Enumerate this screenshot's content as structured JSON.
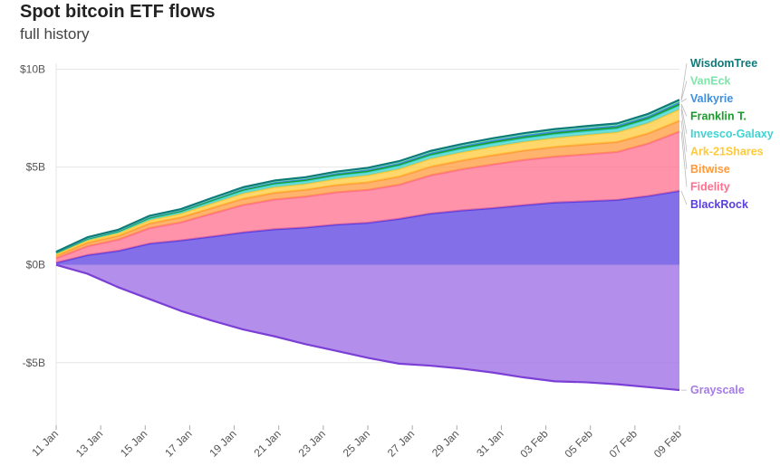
{
  "header": {
    "title": "Spot bitcoin ETF flows",
    "subtitle": "full history"
  },
  "chart_data": {
    "type": "area",
    "title": "Spot bitcoin ETF flows",
    "subtitle": "full history",
    "stacked": true,
    "y_unit": "$B",
    "ylim": [
      -8.2,
      10.3
    ],
    "yticks": [
      {
        "value": 10,
        "label": "$10B"
      },
      {
        "value": 5,
        "label": "$5B"
      },
      {
        "value": 0,
        "label": "$0B"
      },
      {
        "value": -5,
        "label": "-$5B"
      }
    ],
    "x_labels": [
      "11 Jan",
      "13 Jan",
      "15 Jan",
      "17 Jan",
      "19 Jan",
      "21 Jan",
      "23 Jan",
      "25 Jan",
      "27 Jan",
      "29 Jan",
      "31 Jan",
      "03 Feb",
      "05 Feb",
      "07 Feb",
      "09 Feb"
    ],
    "x": [
      "11 Jan",
      "12 Jan",
      "16 Jan",
      "17 Jan",
      "18 Jan",
      "19 Jan",
      "22 Jan",
      "23 Jan",
      "24 Jan",
      "25 Jan",
      "26 Jan",
      "29 Jan",
      "30 Jan",
      "31 Jan",
      "01 Feb",
      "02 Feb",
      "05 Feb",
      "06 Feb",
      "07 Feb",
      "08 Feb",
      "09 Feb"
    ],
    "grid": true,
    "legend": "right",
    "series": [
      {
        "name": "BlackRock",
        "color": "#5a3fe0",
        "values": [
          0.11,
          0.5,
          0.72,
          1.09,
          1.25,
          1.45,
          1.66,
          1.82,
          1.91,
          2.06,
          2.15,
          2.35,
          2.62,
          2.78,
          2.9,
          3.05,
          3.19,
          3.25,
          3.32,
          3.52,
          3.78
        ]
      },
      {
        "name": "Fidelity",
        "color": "#ff6f8e",
        "values": [
          0.23,
          0.45,
          0.57,
          0.79,
          0.92,
          1.17,
          1.4,
          1.52,
          1.58,
          1.65,
          1.68,
          1.74,
          1.95,
          2.1,
          2.23,
          2.31,
          2.34,
          2.4,
          2.45,
          2.68,
          3.03
        ]
      },
      {
        "name": "Bitwise",
        "color": "#ff9a3c",
        "values": [
          0.13,
          0.18,
          0.2,
          0.24,
          0.26,
          0.29,
          0.32,
          0.34,
          0.35,
          0.37,
          0.39,
          0.42,
          0.44,
          0.45,
          0.47,
          0.48,
          0.5,
          0.51,
          0.51,
          0.52,
          0.56
        ]
      },
      {
        "name": "Ark-21Shares",
        "color": "#ffc938",
        "values": [
          0.1,
          0.12,
          0.14,
          0.17,
          0.19,
          0.23,
          0.27,
          0.29,
          0.3,
          0.32,
          0.36,
          0.39,
          0.41,
          0.42,
          0.44,
          0.45,
          0.46,
          0.48,
          0.5,
          0.53,
          0.58
        ]
      },
      {
        "name": "Invesco-Galaxy",
        "color": "#3fd4d4",
        "values": [
          0.04,
          0.06,
          0.07,
          0.09,
          0.1,
          0.12,
          0.14,
          0.15,
          0.15,
          0.16,
          0.16,
          0.17,
          0.17,
          0.18,
          0.18,
          0.18,
          0.19,
          0.19,
          0.19,
          0.2,
          0.2
        ]
      },
      {
        "name": "Franklin T.",
        "color": "#1a9c2a",
        "values": [
          0.02,
          0.03,
          0.03,
          0.04,
          0.04,
          0.05,
          0.06,
          0.06,
          0.06,
          0.07,
          0.07,
          0.07,
          0.07,
          0.08,
          0.08,
          0.08,
          0.08,
          0.08,
          0.08,
          0.08,
          0.09
        ]
      },
      {
        "name": "Valkyrie",
        "color": "#3c8fe3",
        "values": [
          0.02,
          0.03,
          0.03,
          0.04,
          0.04,
          0.05,
          0.05,
          0.06,
          0.06,
          0.06,
          0.07,
          0.07,
          0.07,
          0.07,
          0.08,
          0.08,
          0.08,
          0.08,
          0.08,
          0.08,
          0.09
        ]
      },
      {
        "name": "VanEck",
        "color": "#7ee5a8",
        "values": [
          0.01,
          0.02,
          0.02,
          0.03,
          0.03,
          0.03,
          0.04,
          0.04,
          0.04,
          0.05,
          0.05,
          0.05,
          0.05,
          0.05,
          0.05,
          0.06,
          0.06,
          0.06,
          0.06,
          0.06,
          0.06
        ]
      },
      {
        "name": "WisdomTree",
        "color": "#0f7a7a",
        "values": [
          0.01,
          0.02,
          0.02,
          0.02,
          0.02,
          0.03,
          0.03,
          0.03,
          0.03,
          0.03,
          0.03,
          0.04,
          0.04,
          0.04,
          0.04,
          0.04,
          0.04,
          0.04,
          0.04,
          0.05,
          0.05
        ]
      },
      {
        "name": "Grayscale",
        "color": "#a67be8",
        "negative": true,
        "values": [
          0.0,
          -0.45,
          -1.15,
          -1.75,
          -2.35,
          -2.85,
          -3.3,
          -3.65,
          -4.05,
          -4.4,
          -4.75,
          -5.05,
          -5.15,
          -5.3,
          -5.5,
          -5.75,
          -5.95,
          -6.0,
          -6.1,
          -6.25,
          -6.4
        ]
      }
    ]
  }
}
